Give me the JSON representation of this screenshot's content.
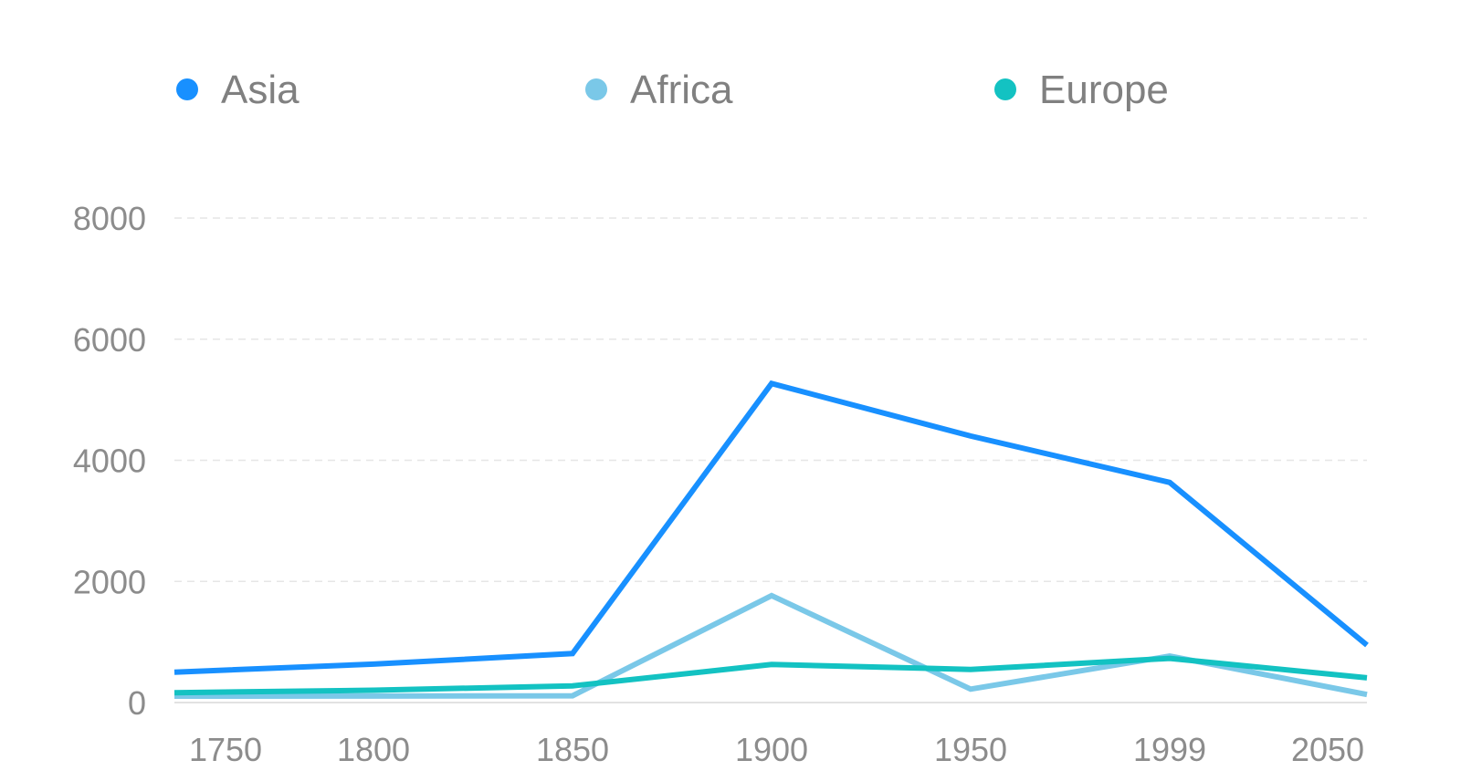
{
  "chart_data": {
    "type": "line",
    "categories": [
      "1750",
      "1800",
      "1850",
      "1900",
      "1950",
      "1999",
      "2050"
    ],
    "series": [
      {
        "name": "Asia",
        "color": "#1890ff",
        "values": [
          502,
          635,
          809,
          5268,
          4400,
          3634,
          947
        ]
      },
      {
        "name": "Africa",
        "color": "#7ac8e8",
        "values": [
          106,
          107,
          111,
          1766,
          221,
          767,
          133
        ]
      },
      {
        "name": "Europe",
        "color": "#13c2c2",
        "values": [
          163,
          203,
          276,
          628,
          547,
          729,
          408
        ]
      }
    ],
    "yticks": [
      "0",
      "2000",
      "4000",
      "6000",
      "8000"
    ],
    "ylim": [
      0,
      8000
    ],
    "grid": true,
    "legend_position": "top"
  }
}
